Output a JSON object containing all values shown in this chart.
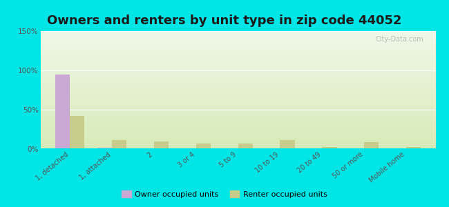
{
  "title": "Owners and renters by unit type in zip code 44052",
  "categories": [
    "1, detached",
    "1, attached",
    "2",
    "3 or 4",
    "5 to 9",
    "10 to 19",
    "20 to 49",
    "50 or more",
    "Mobile home"
  ],
  "owner_values": [
    95,
    2,
    0,
    0,
    0,
    0,
    0,
    0,
    1
  ],
  "renter_values": [
    42,
    11,
    10,
    7,
    7,
    11,
    3,
    9,
    3
  ],
  "owner_color": "#c9a8d4",
  "renter_color": "#c8cc8a",
  "bg_color": "#00e5e5",
  "plot_bg_top_color": "#d8eab8",
  "plot_bg_bottom_color": "#f0f8e8",
  "ylabel_ticks": [
    "0%",
    "50%",
    "100%",
    "150%"
  ],
  "ytick_vals": [
    0,
    50,
    100,
    150
  ],
  "ylim": [
    0,
    150
  ],
  "bar_width": 0.35,
  "legend_owner": "Owner occupied units",
  "legend_renter": "Renter occupied units",
  "title_fontsize": 13,
  "watermark": "City-Data.com"
}
